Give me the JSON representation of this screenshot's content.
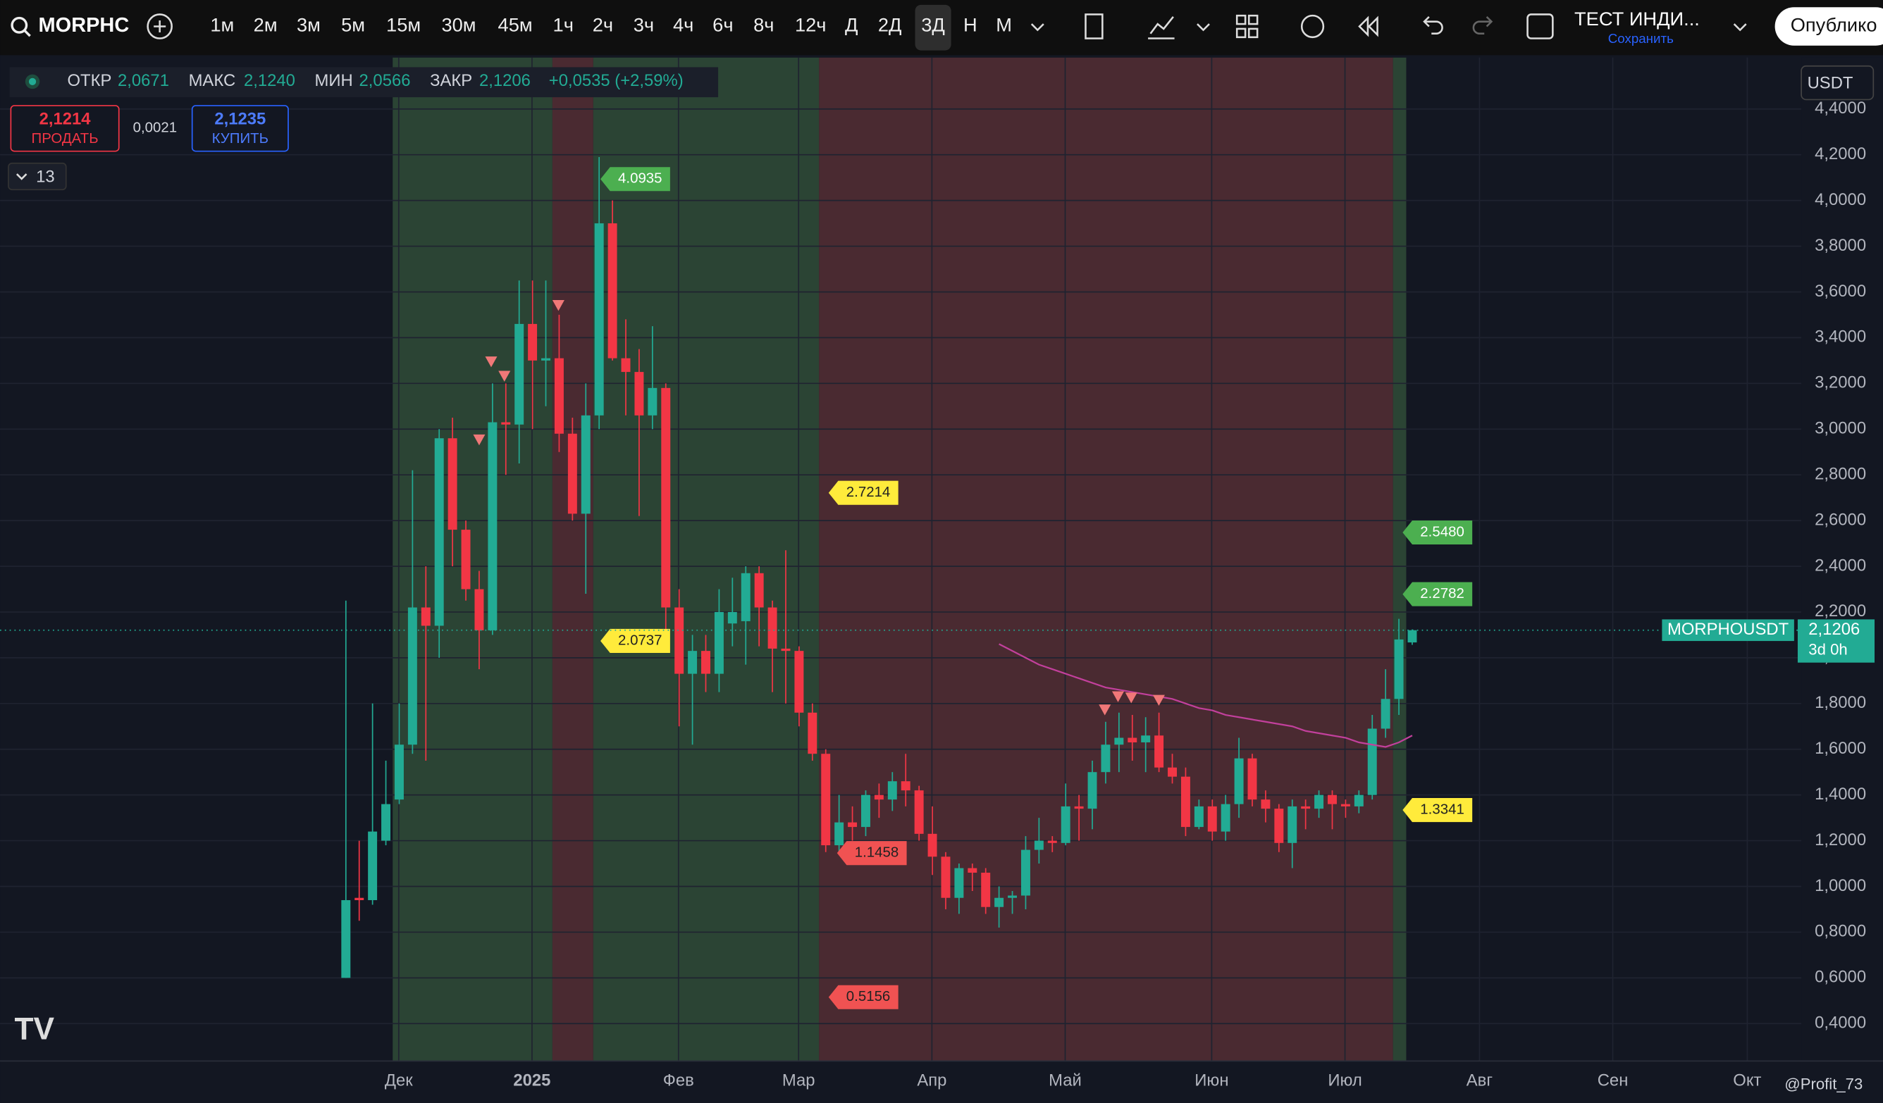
{
  "toolbar": {
    "symbol": "MORPHC",
    "timeframes": [
      "1м",
      "2м",
      "3м",
      "5м",
      "15м",
      "30м",
      "45м",
      "1ч",
      "2ч",
      "3ч",
      "4ч",
      "6ч",
      "8ч",
      "12ч",
      "Д",
      "2Д",
      "3Д",
      "Н",
      "М"
    ],
    "layout_name": "ТЕСТ ИНДИ...",
    "save": "Сохранить",
    "publish": "Опублико"
  },
  "legend": {
    "open_label": "ОТКР",
    "open": "2,0671",
    "high_label": "МАКС",
    "high": "2,1240",
    "low_label": "МИН",
    "low": "2,0566",
    "close_label": "ЗАКР",
    "close": "2,1206",
    "change": "+0,0535 (+2,59%)"
  },
  "trade": {
    "sell_price": "2,1214",
    "sell": "ПРОДАТЬ",
    "spread": "0,0021",
    "buy_price": "2,1235",
    "buy": "КУПИТЬ"
  },
  "indicators_count": "13",
  "currency": "USDT",
  "price_tag": {
    "symbol": "MORPHOUSDT",
    "price": "2,1206",
    "countdown": "3d 0h"
  },
  "watermark": "@Profit_73",
  "chart_data": {
    "type": "candlestick",
    "open": [
      0.6,
      0.95,
      0.94,
      1.2,
      1.38,
      1.62,
      2.22,
      2.14,
      2.96,
      2.56,
      2.3,
      2.12,
      3.03,
      3.02,
      3.46,
      3.3,
      3.31,
      2.98,
      2.63,
      3.06,
      3.9,
      3.31,
      3.25,
      3.06,
      3.18,
      2.22,
      1.93,
      2.03,
      1.93,
      2.15,
      2.16,
      2.37,
      2.22,
      2.04,
      2.03,
      1.76,
      1.58,
      1.18,
      1.28,
      1.26,
      1.4,
      1.38,
      1.46,
      1.42,
      1.23,
      1.13,
      0.95,
      1.08,
      1.06,
      0.91,
      0.95,
      0.96,
      1.16,
      1.2,
      1.19,
      1.35,
      1.34,
      1.5,
      1.62,
      1.65,
      1.63,
      1.66,
      1.52,
      1.48,
      1.26,
      1.35,
      1.24,
      1.36,
      1.56,
      1.38,
      1.34,
      1.19,
      1.35,
      1.34,
      1.4,
      1.36,
      1.35,
      1.4,
      1.69,
      1.82,
      2.0671
    ],
    "high": [
      2.25,
      1.2,
      1.8,
      1.55,
      1.8,
      2.82,
      2.4,
      3.0,
      3.05,
      2.6,
      2.38,
      3.2,
      3.2,
      3.65,
      3.65,
      3.65,
      3.5,
      3.05,
      3.2,
      4.19,
      4.0,
      3.48,
      3.35,
      3.45,
      3.2,
      2.3,
      2.1,
      2.1,
      2.3,
      2.35,
      2.4,
      2.4,
      2.25,
      2.47,
      2.05,
      1.8,
      1.6,
      1.4,
      1.35,
      1.42,
      1.45,
      1.5,
      1.58,
      1.44,
      1.35,
      1.15,
      1.1,
      1.1,
      1.08,
      1.0,
      0.98,
      1.22,
      1.3,
      1.22,
      1.45,
      1.4,
      1.55,
      1.72,
      1.76,
      1.75,
      1.74,
      1.76,
      1.58,
      1.52,
      1.38,
      1.38,
      1.4,
      1.65,
      1.58,
      1.42,
      1.36,
      1.38,
      1.38,
      1.42,
      1.42,
      1.38,
      1.42,
      1.75,
      1.95,
      2.17,
      2.124
    ],
    "low": [
      0.6,
      0.85,
      0.92,
      1.18,
      1.36,
      1.58,
      1.55,
      2.0,
      2.4,
      2.25,
      1.95,
      2.1,
      2.8,
      2.85,
      3.0,
      3.1,
      2.9,
      2.6,
      2.28,
      3.0,
      3.3,
      3.06,
      2.62,
      3.0,
      2.1,
      1.7,
      1.62,
      1.85,
      1.85,
      2.05,
      1.97,
      2.05,
      1.85,
      1.8,
      1.7,
      1.55,
      1.15,
      1.14,
      1.2,
      1.22,
      1.3,
      1.33,
      1.35,
      1.2,
      1.05,
      0.9,
      0.88,
      0.98,
      0.88,
      0.82,
      0.88,
      0.9,
      1.1,
      1.15,
      1.18,
      1.2,
      1.25,
      1.45,
      1.5,
      1.55,
      1.5,
      1.5,
      1.45,
      1.22,
      1.25,
      1.2,
      1.2,
      1.3,
      1.35,
      1.28,
      1.15,
      1.08,
      1.25,
      1.3,
      1.25,
      1.3,
      1.32,
      1.38,
      1.65,
      1.75,
      2.0566
    ],
    "close": [
      0.94,
      0.94,
      1.24,
      1.36,
      1.62,
      2.22,
      2.14,
      2.96,
      2.56,
      2.3,
      2.12,
      3.03,
      3.02,
      3.46,
      3.3,
      3.31,
      2.98,
      2.63,
      3.06,
      3.9,
      3.31,
      3.25,
      3.06,
      3.18,
      2.22,
      1.93,
      2.03,
      1.93,
      2.2,
      2.2,
      2.37,
      2.22,
      2.04,
      2.03,
      1.76,
      1.58,
      1.18,
      1.28,
      1.26,
      1.4,
      1.38,
      1.46,
      1.42,
      1.23,
      1.13,
      0.95,
      1.08,
      1.06,
      0.91,
      0.95,
      0.96,
      1.16,
      1.2,
      1.19,
      1.35,
      1.34,
      1.5,
      1.62,
      1.65,
      1.63,
      1.66,
      1.52,
      1.48,
      1.26,
      1.35,
      1.24,
      1.36,
      1.56,
      1.38,
      1.34,
      1.19,
      1.35,
      1.34,
      1.4,
      1.36,
      1.35,
      1.4,
      1.69,
      1.82,
      2.08,
      2.1206
    ],
    "up_color": "#22ab94",
    "down_color": "#f23645",
    "ma": {
      "color": "#c2409c",
      "values": [
        null,
        null,
        null,
        null,
        null,
        null,
        null,
        null,
        null,
        null,
        null,
        null,
        null,
        null,
        null,
        null,
        null,
        null,
        null,
        null,
        null,
        null,
        null,
        null,
        null,
        null,
        null,
        null,
        null,
        null,
        null,
        null,
        null,
        null,
        null,
        null,
        null,
        null,
        null,
        null,
        null,
        null,
        null,
        null,
        null,
        null,
        null,
        null,
        null,
        2.06,
        2.03,
        2.0,
        1.97,
        1.95,
        1.93,
        1.91,
        1.89,
        1.87,
        1.86,
        1.85,
        1.84,
        1.83,
        1.82,
        1.8,
        1.78,
        1.77,
        1.75,
        1.74,
        1.73,
        1.72,
        1.71,
        1.7,
        1.68,
        1.67,
        1.66,
        1.65,
        1.63,
        1.62,
        1.61,
        1.63,
        1.66
      ]
    },
    "levels": [
      {
        "value": 4.0935,
        "label": "4.0935",
        "color": "#4caf50"
      },
      {
        "value": 2.7214,
        "label": "2.7214",
        "color": "#ffeb3b"
      },
      {
        "value": 2.0737,
        "label": "2.0737",
        "color": "#ffeb3b"
      },
      {
        "value": 1.1458,
        "label": "1.1458",
        "color": "#f05252"
      },
      {
        "value": 0.5156,
        "label": "0.5156",
        "color": "#f05252"
      },
      {
        "value": 2.548,
        "label": "2.5480",
        "color": "#4caf50"
      },
      {
        "value": 2.2782,
        "label": "2.2782",
        "color": "#4caf50"
      },
      {
        "value": 1.3341,
        "label": "1.3341",
        "color": "#ffeb3b"
      }
    ],
    "x_labels": [
      "Дек",
      "2025",
      "Фев",
      "Мар",
      "Апр",
      "Май",
      "Июн",
      "Июл",
      "Авг",
      "Сен",
      "Окт"
    ],
    "ylim": [
      0.3,
      4.45
    ],
    "yticks": [
      {
        "value": 0.4,
        "label": "0,4000"
      },
      {
        "value": 0.6,
        "label": "0,6000"
      },
      {
        "value": 0.8,
        "label": "0,8000"
      },
      {
        "value": 1.0,
        "label": "1,0000"
      },
      {
        "value": 1.2,
        "label": "1,2000"
      },
      {
        "value": 1.4,
        "label": "1,4000"
      },
      {
        "value": 1.6,
        "label": "1,6000"
      },
      {
        "value": 1.8,
        "label": "1,8000"
      },
      {
        "value": 2.0,
        "label": "2,0000"
      },
      {
        "value": 2.2,
        "label": "2,2000"
      },
      {
        "value": 2.4,
        "label": "2,4000"
      },
      {
        "value": 2.6,
        "label": "2,6000"
      },
      {
        "value": 2.8,
        "label": "2,8000"
      },
      {
        "value": 3.0,
        "label": "3,0000"
      },
      {
        "value": 3.2,
        "label": "3,2000"
      },
      {
        "value": 3.4,
        "label": "3,4000"
      },
      {
        "value": 3.6,
        "label": "3,6000"
      },
      {
        "value": 3.8,
        "label": "3,8000"
      },
      {
        "value": 4.0,
        "label": "4,0000"
      },
      {
        "value": 4.2,
        "label": "4,2000"
      },
      {
        "value": 4.4,
        "label": "4,4000"
      }
    ],
    "grid": true
  }
}
